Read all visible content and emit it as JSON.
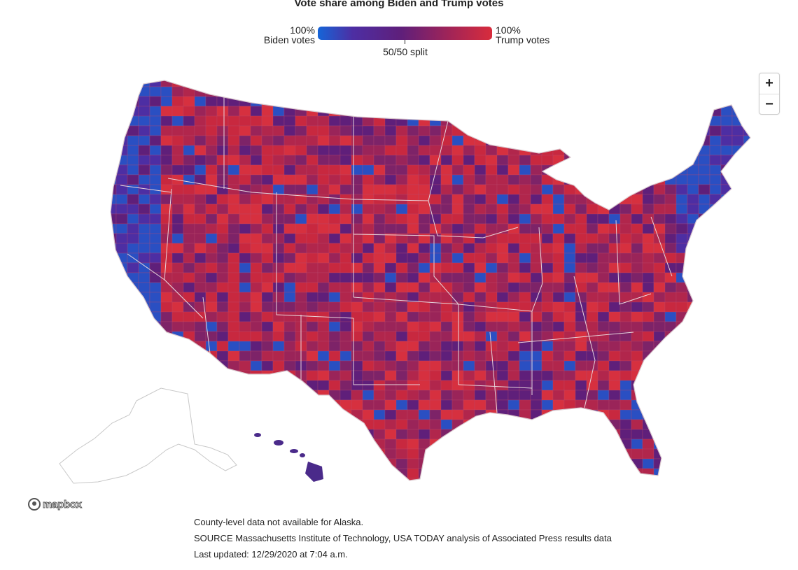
{
  "title": "Vote share among Biden and Trump votes",
  "legend": {
    "left_label": "100%\nBiden votes",
    "right_label": "100%\nTrump votes",
    "mid_label": "50/50 split",
    "colors": {
      "biden": "#1565d8",
      "even": "#5f1f7a",
      "trump": "#d82c3c"
    }
  },
  "map": {
    "type": "choropleth",
    "geography": "US counties",
    "colors": [
      "#2a4fc2",
      "#4d2ea3",
      "#5f1f7a",
      "#7d2368",
      "#9a2459",
      "#b1264c",
      "#c8283f",
      "#d6303f"
    ]
  },
  "zoom": {
    "in_label": "+",
    "out_label": "−"
  },
  "attribution": {
    "logo_text": "mapbox"
  },
  "notes": {
    "alaska": "County-level data not available for Alaska.",
    "source": "SOURCE Massachusetts Institute of Technology, USA TODAY analysis of Associated Press results data",
    "updated": "Last updated: 12/29/2020 at 7:04 a.m."
  }
}
